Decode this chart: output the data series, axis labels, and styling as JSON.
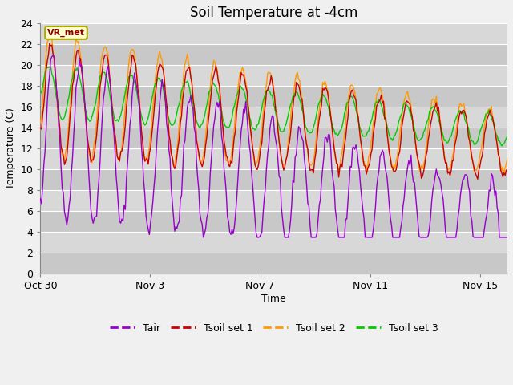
{
  "title": "Soil Temperature at -4cm",
  "xlabel": "Time",
  "ylabel": "Temperature (C)",
  "ylim": [
    0,
    24
  ],
  "yticks": [
    0,
    2,
    4,
    6,
    8,
    10,
    12,
    14,
    16,
    18,
    20,
    22,
    24
  ],
  "xtick_labels": [
    "Oct 30",
    "Nov 3",
    "Nov 7",
    "Nov 11",
    "Nov 15"
  ],
  "xtick_positions": [
    0,
    4,
    8,
    12,
    16
  ],
  "line_colors": {
    "Tair": "#9900cc",
    "Tsoil set 1": "#cc0000",
    "Tsoil set 2": "#ff9900",
    "Tsoil set 3": "#00cc00"
  },
  "legend_labels": [
    "Tair",
    "Tsoil set 1",
    "Tsoil set 2",
    "Tsoil set 3"
  ],
  "vr_met_label": "VR_met",
  "fig_bg_color": "#f0f0f0",
  "plot_bg_color": "#d8d8d8",
  "grid_color": "#ffffff",
  "title_fontsize": 12,
  "axis_fontsize": 9,
  "legend_fontsize": 9,
  "n_points": 408
}
